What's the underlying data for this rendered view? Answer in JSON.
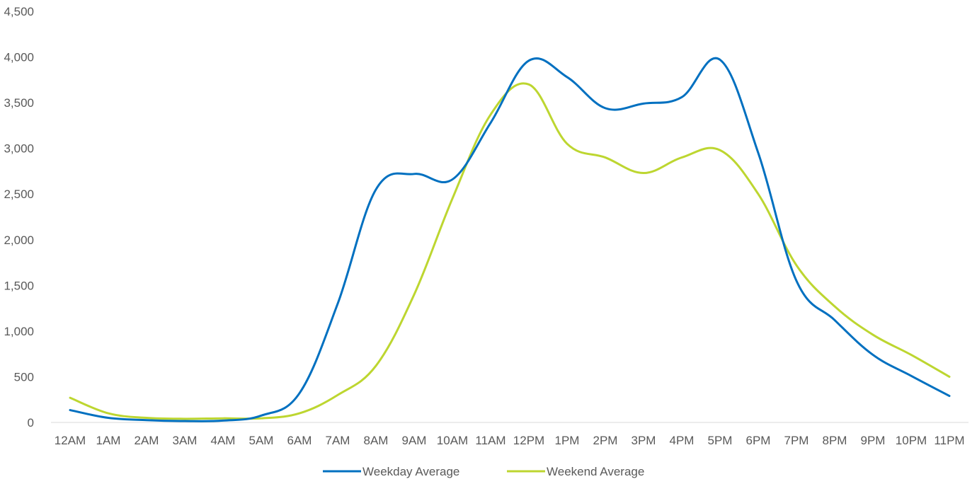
{
  "chart_data": {
    "type": "line",
    "title": "",
    "xlabel": "",
    "ylabel": "",
    "categories": [
      "12AM",
      "1AM",
      "2AM",
      "3AM",
      "4AM",
      "5AM",
      "6AM",
      "7AM",
      "8AM",
      "9AM",
      "10AM",
      "11AM",
      "12PM",
      "1PM",
      "2PM",
      "3PM",
      "4PM",
      "5PM",
      "6PM",
      "7PM",
      "8PM",
      "9PM",
      "10PM",
      "11PM"
    ],
    "y_ticks": [
      "0",
      "500",
      "1,000",
      "1,500",
      "2,000",
      "2,500",
      "3,000",
      "3,500",
      "4,000",
      "4,500"
    ],
    "ylim": [
      0,
      4500
    ],
    "grid": false,
    "legend_position": "bottom",
    "series": [
      {
        "name": "Weekday Average",
        "color": "#0070C0",
        "values": [
          135,
          50,
          25,
          15,
          20,
          75,
          320,
          1300,
          2550,
          2720,
          2660,
          3280,
          3960,
          3780,
          3440,
          3490,
          3560,
          3970,
          2950,
          1550,
          1120,
          740,
          510,
          290
        ]
      },
      {
        "name": "Weekend Average",
        "color": "#BDD630",
        "values": [
          270,
          100,
          50,
          40,
          45,
          45,
          100,
          300,
          620,
          1400,
          2450,
          3370,
          3700,
          3050,
          2900,
          2730,
          2900,
          2980,
          2500,
          1720,
          1270,
          960,
          740,
          500
        ]
      }
    ]
  }
}
